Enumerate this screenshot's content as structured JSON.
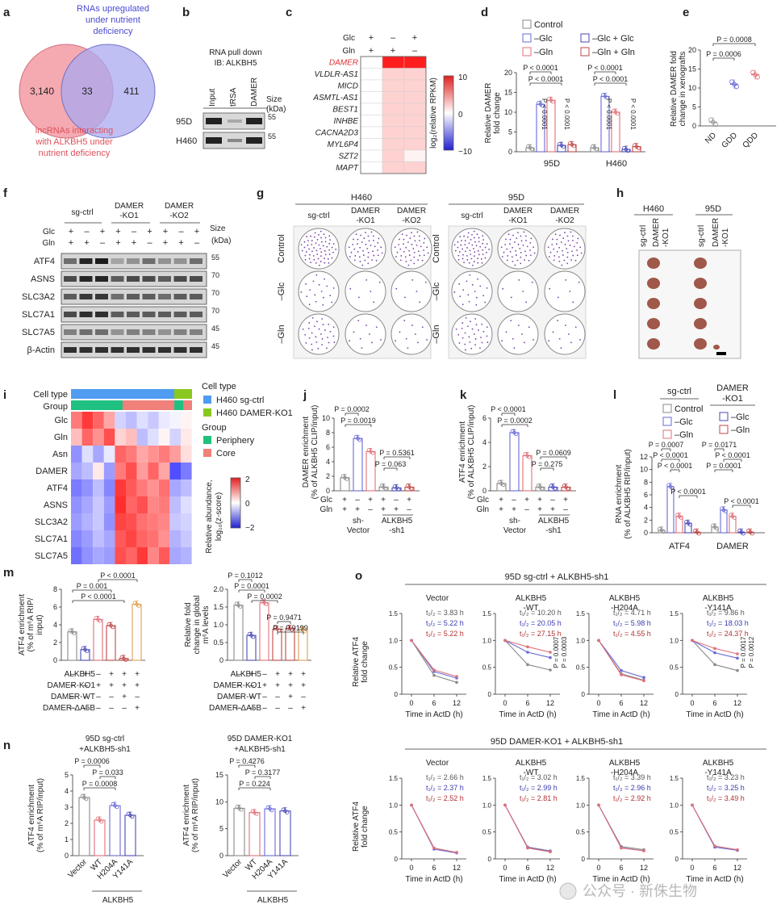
{
  "panels": {
    "a": {
      "letter": "a",
      "blue_label": [
        "RNAs upregulated",
        "under nutrient",
        "deficiency"
      ],
      "red_label": [
        "lncRNAs interacting",
        "with ALKBH5 under",
        "nutrient deficiency"
      ],
      "left_count": "3,140",
      "overlap_count": "33",
      "right_count": "411",
      "colors": {
        "red": "#f4a0a8",
        "blue": "#a9a9f0",
        "red_text": "#e0505a",
        "blue_text": "#4a4ad0"
      }
    },
    "b": {
      "letter": "b",
      "title": [
        "RNA pull down",
        "IB: ALKBH5"
      ],
      "lanes": [
        "Input",
        "tRSA",
        "DAMER"
      ],
      "size_label": "Size",
      "size_unit": "(kDa)",
      "rows": [
        {
          "label": "95D",
          "marker": "55"
        },
        {
          "label": "H460",
          "marker": "55"
        }
      ]
    },
    "c": {
      "letter": "c",
      "conditions": [
        {
          "label": "Glc",
          "values": [
            "+",
            "–",
            "+"
          ]
        },
        {
          "label": "Gln",
          "values": [
            "+",
            "+",
            "–"
          ]
        }
      ],
      "genes": [
        "DAMER",
        "VLDLR-AS1",
        "MICD",
        "ASMTL-AS1",
        "BEST1",
        "INHBE",
        "CACNA2D3",
        "MYL6P4",
        "SZT2",
        "MAPT"
      ],
      "highlight_gene": "DAMER",
      "colorbar_label": "log₂(relative RPKM)",
      "colorbar_ticks": [
        "10",
        "0",
        "−10"
      ],
      "heat_values": [
        [
          0,
          10,
          10
        ],
        [
          0,
          2,
          2
        ],
        [
          0,
          2,
          2
        ],
        [
          0,
          2,
          2
        ],
        [
          0,
          2,
          2
        ],
        [
          0,
          2,
          2
        ],
        [
          0,
          2,
          2
        ],
        [
          0,
          2,
          2
        ],
        [
          0,
          2,
          0.6
        ],
        [
          0,
          2,
          2
        ]
      ]
    },
    "d": {
      "letter": "d",
      "legend": [
        "Control",
        "–Glc",
        "–Gln",
        "–Glc + Glc",
        "–Gln + Gln"
      ],
      "ylabel": [
        "Relative DAMER",
        "fold change"
      ],
      "pvals": [
        "P < 0.0001",
        "P < 0.0001",
        "P < 0.0001",
        "P < 0.0001",
        "P < 0.0001",
        "P < 0.0001",
        "P < 0.0001",
        "P < 0.0001"
      ]
    },
    "e": {
      "letter": "e",
      "ylabel": [
        "Relative DAMER fold",
        "change in xenografts"
      ],
      "pvals": [
        "P = 0.0008",
        "P = 0.0006"
      ]
    },
    "f": {
      "letter": "f",
      "groups": [
        "sg-ctrl",
        "DAMER",
        "-KO1",
        "DAMER",
        "-KO2"
      ],
      "glc": [
        "+",
        "–",
        "+",
        "+",
        "–",
        "+",
        "+",
        "–",
        "+"
      ],
      "gln": [
        "+",
        "+",
        "–",
        "+",
        "+",
        "–",
        "+",
        "+",
        "–"
      ],
      "row_labels": [
        "Glc",
        "Gln"
      ],
      "size_label": "Size",
      "size_unit": "(kDa)",
      "bands": [
        {
          "label": "ATF4",
          "marker": "55"
        },
        {
          "label": "ASNS",
          "marker": "70"
        },
        {
          "label": "SLC3A2",
          "marker": "70"
        },
        {
          "label": "SLC7A1",
          "marker": "70"
        },
        {
          "label": "SLC7A5",
          "marker": "45"
        },
        {
          "label": "β-Actin",
          "marker": "45"
        }
      ]
    },
    "g": {
      "letter": "g",
      "h460": "H460",
      "d95": "95D",
      "cols": [
        "sg-ctrl",
        "DAMER",
        "-KO1",
        "DAMER",
        "-KO2"
      ],
      "rows": [
        "Control",
        "–Glc",
        "–Gln"
      ]
    },
    "h": {
      "letter": "h",
      "h460": "H460",
      "d95": "95D",
      "cols": [
        "sg-ctrl",
        "DAMER",
        "-KO1"
      ]
    },
    "i": {
      "letter": "i",
      "top_labels": [
        "Cell type",
        "Group"
      ],
      "rows": [
        "Glc",
        "Gln",
        "Asn",
        "DAMER",
        "ATF4",
        "ASNS",
        "SLC3A2",
        "SLC7A1",
        "SLC7A5"
      ],
      "legend_celltype": "Cell type",
      "celltypes": [
        "H460 sg-ctrl",
        "H460 DAMER-KO1"
      ],
      "legend_group": "Group",
      "groups": [
        "Periphery",
        "Core"
      ],
      "colorbar_label": [
        "Relative abundance,",
        "log₁₀(z-score)"
      ],
      "colorbar_ticks": [
        "2",
        "0",
        "−2"
      ]
    },
    "j": {
      "letter": "j",
      "ylabel": [
        "DAMER enrichment",
        "(% of ALKBH5 CLIP/input)"
      ],
      "pvals": [
        "P = 0.0002",
        "P = 0.0019",
        "P = 0.5361",
        "P = 0.063"
      ],
      "xrows": [
        "Glc",
        "Gln"
      ],
      "xgroups": [
        "sh-",
        "Vector",
        "ALKBH5",
        "-sh1"
      ]
    },
    "k": {
      "letter": "k",
      "ylabel": [
        "ATF4 enrichment",
        "(% of ALKBH5 CLIP/input)"
      ],
      "pvals": [
        "P < 0.0001",
        "P = 0.0002",
        "P = 0.0609",
        "P = 0.275"
      ],
      "xrows": [
        "Glc",
        "Gln"
      ],
      "xgroups": [
        "sh-",
        "Vector",
        "ALKBH5",
        "-sh1"
      ]
    },
    "l": {
      "letter": "l",
      "ylabel": [
        "RNA enrichment",
        "(% of ALKBH5 RIP/input)"
      ],
      "legend_groups": [
        "sg-ctrl",
        "DAMER",
        "-KO1"
      ],
      "legend": [
        "Control",
        "–Glc",
        "–Gln",
        "–Glc",
        "–Gln"
      ],
      "pvals": [
        "P = 0.0007",
        "P < 0.0001",
        "P < 0.0001",
        "P < 0.0001",
        "P = 0.0171",
        "P < 0.0001",
        "P = 0.0001",
        "P < 0.0001"
      ],
      "xlabels": [
        "ATF4",
        "DAMER"
      ]
    },
    "m": {
      "letter": "m",
      "ylabel_left": [
        "ATF4 enrichment",
        "(% of m⁶A RIP/",
        "input)"
      ],
      "ylabel_right": [
        "Relative fold",
        "change in global",
        "m⁶A levels"
      ],
      "pvals_left": [
        "P < 0.0001",
        "P = 0.001",
        "P < 0.0001"
      ],
      "pvals_right": [
        "P = 0.1012",
        "P = 0.0001",
        "P = 0.0002",
        "P = 0.9471",
        "P = 0.9199"
      ],
      "rows": [
        {
          "label": "ALKBH5",
          "values": [
            "–",
            "+",
            "–",
            "+",
            "+",
            "+"
          ]
        },
        {
          "label": "DAMER-KO1",
          "values": [
            "–",
            "–",
            "+",
            "+",
            "+",
            "+"
          ]
        },
        {
          "label": "DAMER-WT",
          "values": [
            "–",
            "–",
            "–",
            "–",
            "+",
            "–"
          ]
        },
        {
          "label": "DAMER-ΔA5B",
          "values": [
            "–",
            "–",
            "–",
            "–",
            "–",
            "+"
          ]
        }
      ]
    },
    "n": {
      "letter": "n",
      "title_left": [
        "95D sg-ctrl",
        "+ALKBH5-sh1"
      ],
      "title_right": [
        "95D DAMER-KO1",
        "+ALKBH5-sh1"
      ],
      "ylabel": [
        "ATF4 enrichment",
        "(% of m⁶A RIP/input)"
      ],
      "pvals_left": [
        "P = 0.0006",
        "P = 0.033",
        "P = 0.0008"
      ],
      "pvals_right": [
        "P = 0.4276",
        "P = 0.3177",
        "P = 0.224"
      ],
      "xlabels": [
        "Vector",
        "WT",
        "H204A",
        "Y141A"
      ],
      "group": "ALKBH5"
    },
    "o": {
      "letter": "o",
      "title_top": "95D sg-ctrl + ALKBH5-sh1",
      "title_bottom": "95D DAMER-KO1 + ALKBH5-sh1",
      "ylabel": [
        "Relative ATF4",
        "fold change"
      ],
      "xlabel": "Time in ActD (h)",
      "panel_titles": [
        [
          "Vector"
        ],
        [
          "ALKBH5",
          "-WT"
        ],
        [
          "ALKBH5",
          "-H204A"
        ],
        [
          "ALKBH5",
          "-Y141A"
        ]
      ],
      "half_lives_top": [
        [
          "t₁/₂ = 3.83 h",
          "t₁/₂ = 5.22 h",
          "t₁/₂ = 5.22 h"
        ],
        [
          "t₁/₂ = 10.20 h",
          "t₁/₂ = 20.05 h",
          "t₁/₂ = 27.15 h"
        ],
        [
          "t₁/₂ = 4.71 h",
          "t₁/₂ = 5.98 h",
          "t₁/₂ = 4.55 h"
        ],
        [
          "t₁/₂ = 9.86 h",
          "t₁/₂ = 18.03 h",
          "t₁/₂ = 24.37 h"
        ]
      ],
      "half_lives_bottom": [
        [
          "t₁/₂ = 2.66 h",
          "t₁/₂ = 2.37 h",
          "t₁/₂ = 2.52 h"
        ],
        [
          "t₁/₂ = 3.02 h",
          "t₁/₂ = 2.99 h",
          "t₁/₂ = 2.81 h"
        ],
        [
          "t₁/₂ = 3.39 h",
          "t₁/₂ = 2.96 h",
          "t₁/₂ = 2.92 h"
        ],
        [
          "t₁/₂ = 3.23 h",
          "t₁/₂ = 3.25 h",
          "t₁/₂ = 3.49 h"
        ]
      ],
      "side_pvals_wt": [
        "P = 0.0007",
        "P = 0.0003"
      ],
      "side_pvals_y141a": [
        "P = 0.0017",
        "P = 0.0012"
      ]
    }
  },
  "watermark": "公众号 · 新侏生物",
  "series_colors": [
    "#8a8a8a",
    "#6a6ad8",
    "#e07078",
    "#4a4ab8",
    "#c04848"
  ],
  "chart_data": [
    {
      "panel": "d",
      "type": "bar",
      "categories": [
        "95D",
        "H460"
      ],
      "ylim": [
        0,
        20
      ],
      "yticks": [
        "0",
        "5",
        "10",
        "15",
        "20"
      ],
      "series": [
        {
          "name": "Control",
          "values": [
            1,
            1
          ]
        },
        {
          "name": "–Glc",
          "values": [
            12,
            14
          ]
        },
        {
          "name": "–Gln",
          "values": [
            13,
            10
          ]
        },
        {
          "name": "–Glc + Glc",
          "values": [
            1.6,
            0.6
          ]
        },
        {
          "name": "–Gln + Gln",
          "values": [
            1.8,
            1.3
          ]
        }
      ]
    },
    {
      "panel": "e",
      "type": "bar",
      "categories": [
        "ND",
        "GDD",
        "QDD"
      ],
      "ylim": [
        0,
        20
      ],
      "yticks": [
        "0",
        "5",
        "10",
        "15",
        "20"
      ],
      "values": [
        1,
        11,
        13.5
      ]
    },
    {
      "panel": "j",
      "type": "bar",
      "categories": [
        "1",
        "2",
        "3",
        "4",
        "5",
        "6"
      ],
      "ylim": [
        0,
        10
      ],
      "yticks": [
        "0",
        "2",
        "4",
        "6",
        "8",
        "10"
      ],
      "values": [
        1.8,
        7.2,
        5.4,
        0.5,
        0.4,
        0.5
      ]
    },
    {
      "panel": "k",
      "type": "bar",
      "categories": [
        "1",
        "2",
        "3",
        "4",
        "5",
        "6"
      ],
      "ylim": [
        0,
        6
      ],
      "yticks": [
        "0",
        "2",
        "4",
        "6"
      ],
      "values": [
        0.6,
        4.8,
        2.9,
        0.3,
        0.3,
        0.3
      ]
    },
    {
      "panel": "l",
      "type": "bar",
      "categories": [
        "ATF4",
        "DAMER"
      ],
      "ylim": [
        0,
        12
      ],
      "yticks": [
        "0",
        "2",
        "4",
        "6",
        "8",
        "10",
        "12"
      ],
      "series": [
        {
          "name": "Control",
          "values": [
            0.4,
            0.9
          ]
        },
        {
          "name": "–Glc",
          "values": [
            7.3,
            3.6
          ]
        },
        {
          "name": "–Gln",
          "values": [
            2.6,
            2.6
          ]
        },
        {
          "name": "–Glc",
          "values": [
            1.5,
            0.1
          ]
        },
        {
          "name": "–Gln",
          "values": [
            0.1,
            0.1
          ]
        }
      ]
    },
    {
      "panel": "m-left",
      "type": "bar",
      "categories": [
        "1",
        "2",
        "3",
        "4",
        "5",
        "6"
      ],
      "ylim": [
        0,
        8
      ],
      "yticks": [
        "0",
        "2",
        "4",
        "6",
        "8"
      ],
      "values": [
        3.2,
        1.2,
        4.6,
        3.9,
        0.2,
        6.3
      ]
    },
    {
      "panel": "m-right",
      "type": "bar",
      "categories": [
        "1",
        "2",
        "3",
        "4",
        "5",
        "6"
      ],
      "ylim": [
        0,
        2.0
      ],
      "yticks": [
        "0",
        "0.5",
        "1.0",
        "1.5",
        "2.0"
      ],
      "values": [
        1.55,
        0.7,
        1.62,
        0.88,
        0.9,
        0.86
      ]
    },
    {
      "panel": "n-left",
      "type": "bar",
      "categories": [
        "Vector",
        "WT",
        "H204A",
        "Y141A"
      ],
      "ylim": [
        0,
        5
      ],
      "yticks": [
        "0",
        "1",
        "2",
        "3",
        "4",
        "5"
      ],
      "values": [
        3.6,
        2.2,
        3.1,
        2.5
      ]
    },
    {
      "panel": "n-right",
      "type": "bar",
      "categories": [
        "Vector",
        "WT",
        "H204A",
        "Y141A"
      ],
      "ylim": [
        0,
        15
      ],
      "yticks": [
        "0",
        "5",
        "10",
        "15"
      ],
      "values": [
        8.8,
        8.0,
        8.7,
        8.3
      ]
    },
    {
      "panel": "o-top",
      "type": "line",
      "x": [
        0,
        6,
        12
      ],
      "xticks": [
        "0",
        "6",
        "12"
      ],
      "ylim": [
        0,
        1.5
      ],
      "yticks": [
        "0",
        "0.5",
        "1.0",
        "1.5"
      ],
      "subplots": [
        {
          "series": [
            [
              1.0,
              0.35,
              0.22
            ],
            [
              1.0,
              0.42,
              0.3
            ],
            [
              1.0,
              0.45,
              0.33
            ]
          ]
        },
        {
          "series": [
            [
              1.0,
              0.55,
              0.45
            ],
            [
              1.0,
              0.78,
              0.68
            ],
            [
              1.0,
              0.88,
              0.78
            ]
          ]
        },
        {
          "series": [
            [
              1.0,
              0.38,
              0.26
            ],
            [
              1.0,
              0.44,
              0.31
            ],
            [
              1.0,
              0.36,
              0.25
            ]
          ]
        },
        {
          "series": [
            [
              1.0,
              0.55,
              0.44
            ],
            [
              1.0,
              0.77,
              0.67
            ],
            [
              1.0,
              0.85,
              0.75
            ]
          ]
        }
      ]
    },
    {
      "panel": "o-bottom",
      "type": "line",
      "x": [
        0,
        6,
        12
      ],
      "xticks": [
        "0",
        "6",
        "12"
      ],
      "ylim": [
        0,
        1.5
      ],
      "yticks": [
        "0",
        "0.5",
        "1.0",
        "1.5"
      ],
      "subplots": [
        {
          "series": [
            [
              1.0,
              0.2,
              0.12
            ],
            [
              1.0,
              0.18,
              0.11
            ],
            [
              1.0,
              0.2,
              0.12
            ]
          ]
        },
        {
          "series": [
            [
              1.0,
              0.22,
              0.15
            ],
            [
              1.0,
              0.21,
              0.14
            ],
            [
              1.0,
              0.2,
              0.13
            ]
          ]
        },
        {
          "series": [
            [
              1.0,
              0.23,
              0.17
            ],
            [
              1.0,
              0.21,
              0.15
            ],
            [
              1.0,
              0.2,
              0.15
            ]
          ]
        },
        {
          "series": [
            [
              1.0,
              0.22,
              0.16
            ],
            [
              1.0,
              0.22,
              0.16
            ],
            [
              1.0,
              0.24,
              0.17
            ]
          ]
        }
      ]
    }
  ]
}
